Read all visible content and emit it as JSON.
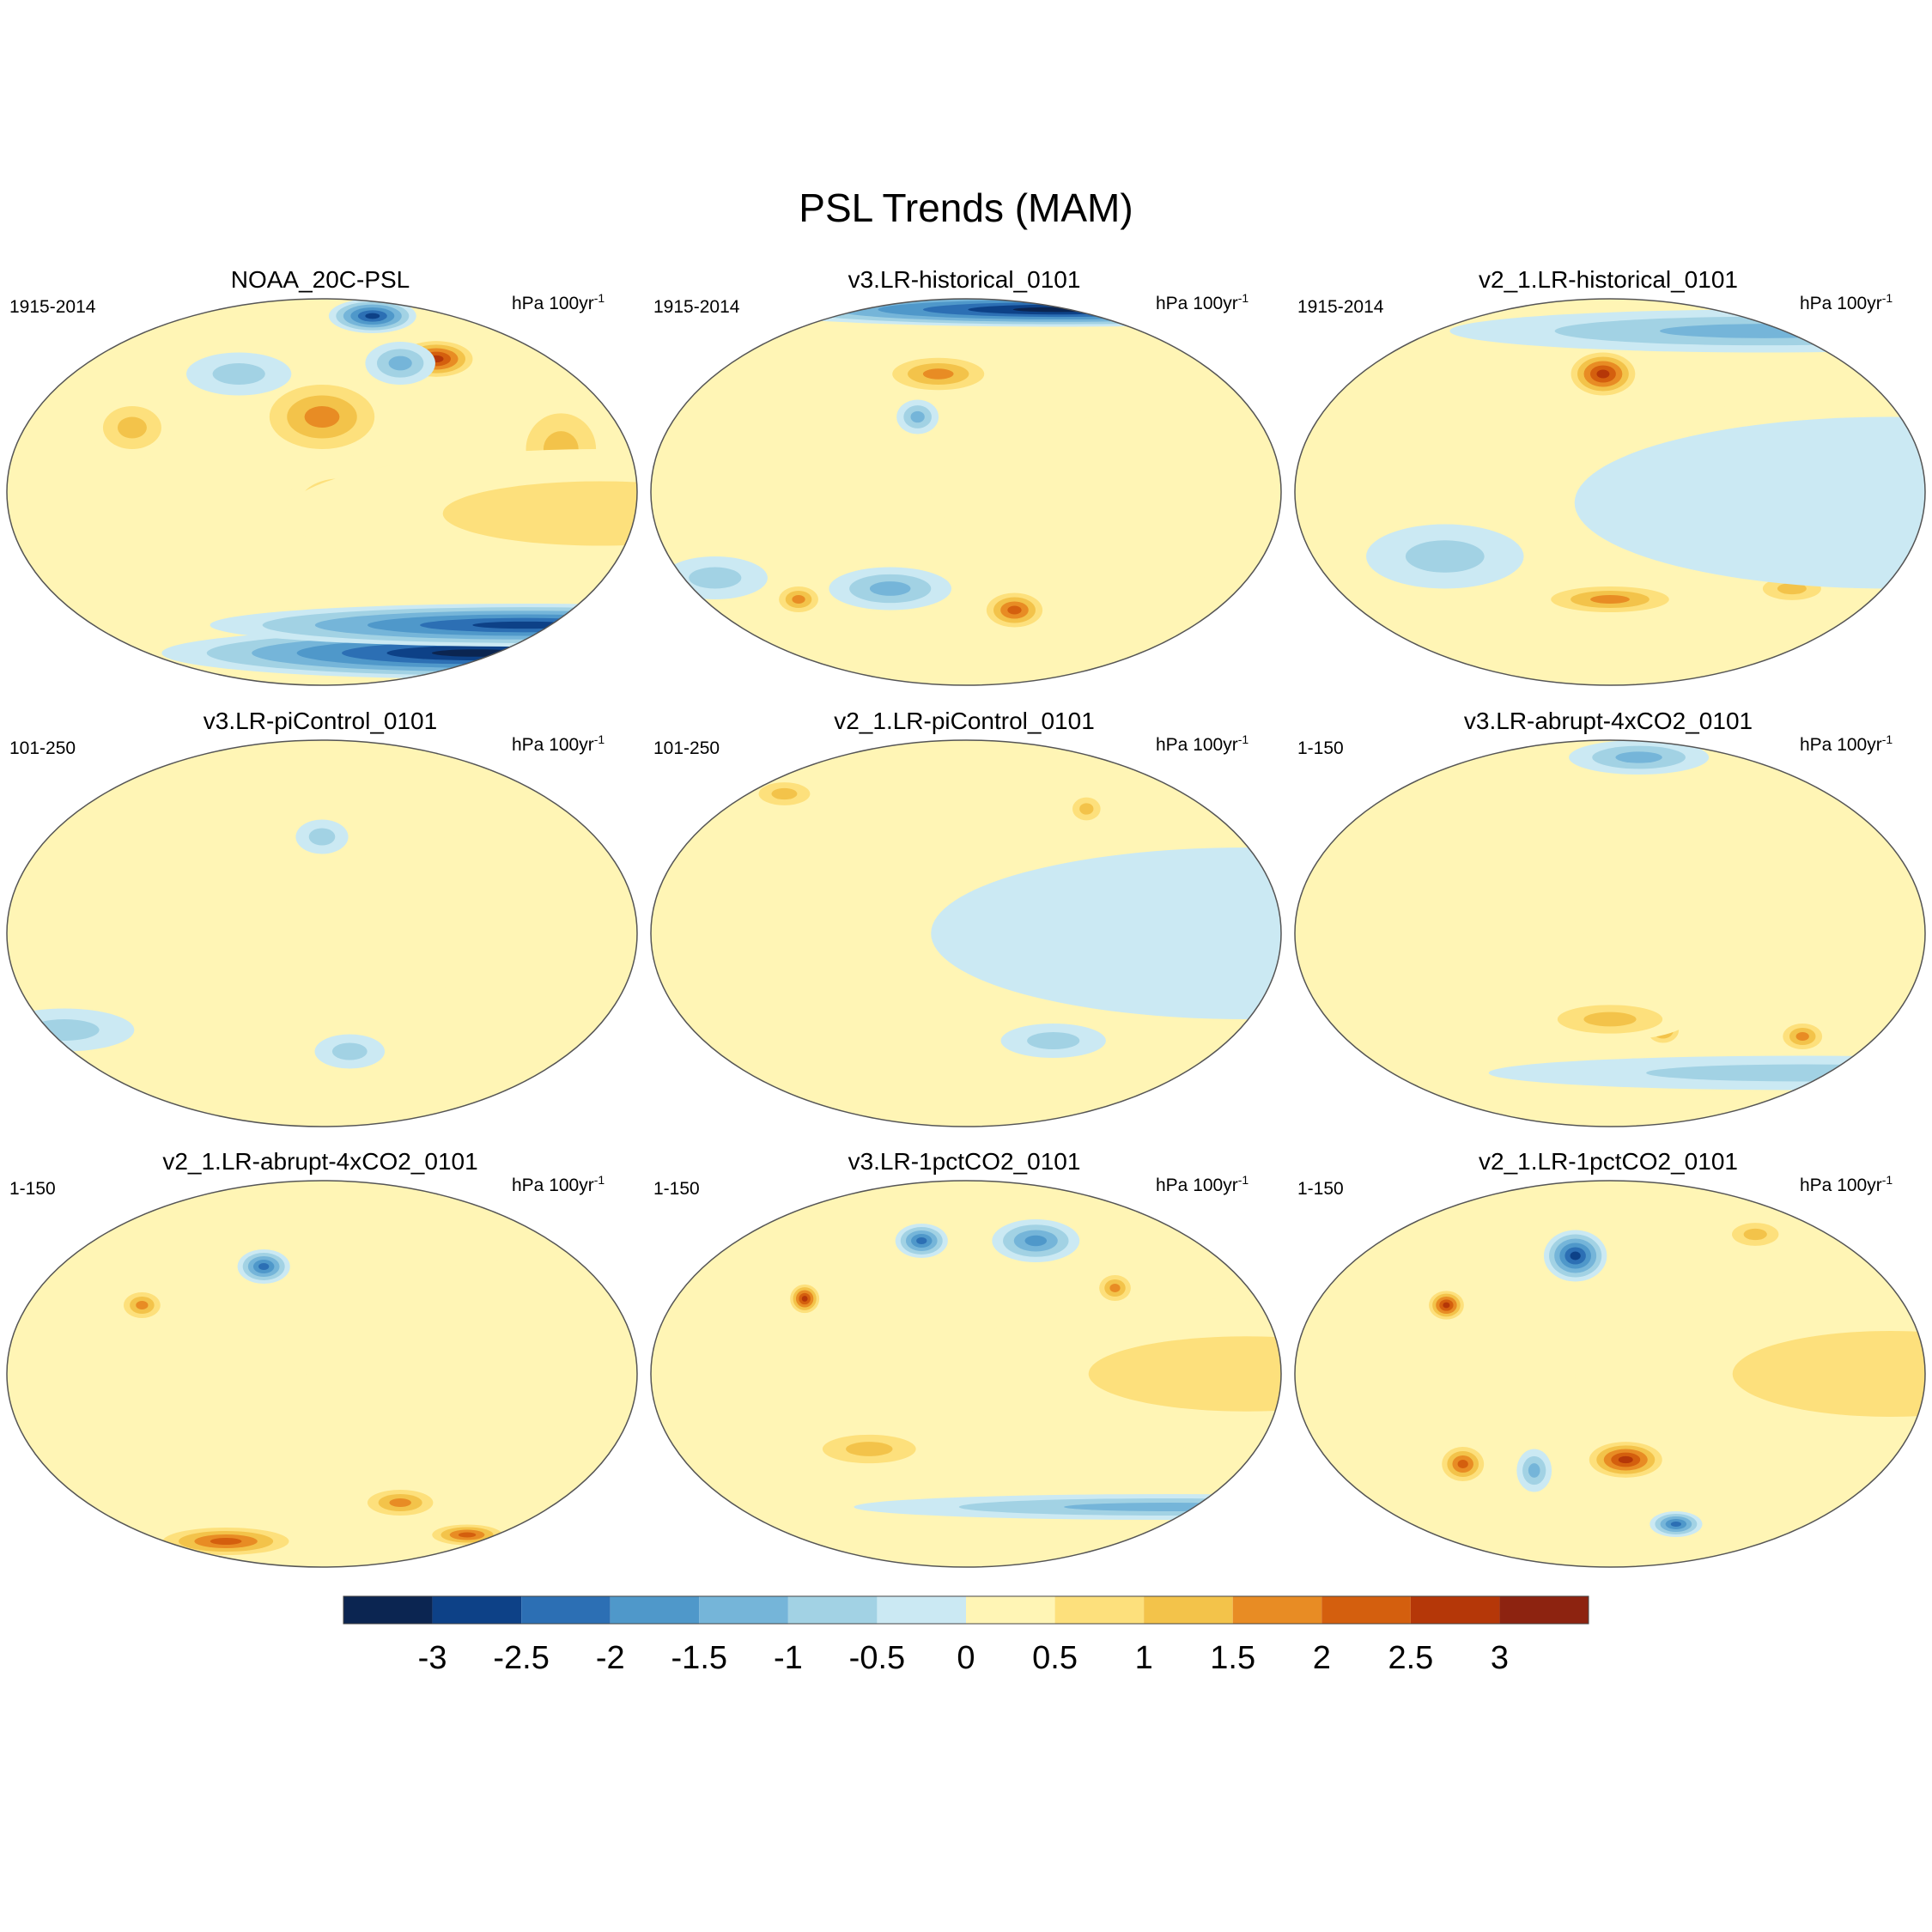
{
  "title": "PSL Trends (MAM)",
  "units_main": "hPa 100yr",
  "units_exp": "-1",
  "panels": [
    {
      "name": "NOAA_20C-PSL",
      "period": "1915-2014",
      "blobs": [
        {
          "lon": 0,
          "lat": -75,
          "v": -3.2,
          "w": 180,
          "h": 12
        },
        {
          "lon": 0,
          "lat": -62,
          "v": -3,
          "w": 180,
          "h": 10
        },
        {
          "lon": 200,
          "lat": 35,
          "v": 1.6,
          "w": 40,
          "h": 20
        },
        {
          "lon": 210,
          "lat": -5,
          "v": 1.8,
          "w": 30,
          "h": 15
        },
        {
          "lon": 290,
          "lat": 62,
          "v": 2.6,
          "w": 25,
          "h": 10
        },
        {
          "lon": 340,
          "lat": 20,
          "v": 1.5,
          "w": 30,
          "h": 25
        },
        {
          "lon": 85,
          "lat": 30,
          "v": 1.4,
          "w": 25,
          "h": 15
        },
        {
          "lon": 140,
          "lat": 55,
          "v": -0.8,
          "w": 30,
          "h": 10
        },
        {
          "lon": 270,
          "lat": 82,
          "v": -3,
          "w": 25,
          "h": 8
        },
        {
          "lon": 260,
          "lat": 60,
          "v": -1.2,
          "w": 20,
          "h": 10
        },
        {
          "lon": 0,
          "lat": -10,
          "v": 0.9,
          "w": 180,
          "h": 30
        }
      ]
    },
    {
      "name": "v3.LR-historical_0101",
      "period": "1915-2014",
      "blobs": [
        {
          "lon": 0,
          "lat": 85,
          "v": -3.2,
          "w": 180,
          "h": 8
        },
        {
          "lon": 180,
          "lat": 55,
          "v": 1.6,
          "w": 35,
          "h": 10
        },
        {
          "lon": 170,
          "lat": 35,
          "v": -1.2,
          "w": 12,
          "h": 8
        },
        {
          "lon": 235,
          "lat": -55,
          "v": 2.3,
          "w": 20,
          "h": 10
        },
        {
          "lon": 85,
          "lat": -50,
          "v": 1.8,
          "w": 15,
          "h": 8
        },
        {
          "lon": 150,
          "lat": -45,
          "v": -1.4,
          "w": 35,
          "h": 10
        },
        {
          "lon": 40,
          "lat": -40,
          "v": -1,
          "w": 30,
          "h": 10
        },
        {
          "lon": 340,
          "lat": 10,
          "v": 0.9,
          "w": 25,
          "h": 25
        },
        {
          "lon": 0,
          "lat": 0,
          "v": 0.4,
          "w": 180,
          "h": 40
        }
      ]
    },
    {
      "name": "v2_1.LR-historical_0101",
      "period": "1915-2014",
      "blobs": [
        {
          "lon": 195,
          "lat": 55,
          "v": 3,
          "w": 22,
          "h": 12
        },
        {
          "lon": 200,
          "lat": -50,
          "v": 1.8,
          "w": 45,
          "h": 8
        },
        {
          "lon": 320,
          "lat": -45,
          "v": 1.4,
          "w": 25,
          "h": 8
        },
        {
          "lon": 0,
          "lat": 75,
          "v": -1.2,
          "w": 180,
          "h": 10
        },
        {
          "lon": 100,
          "lat": -30,
          "v": -1,
          "w": 45,
          "h": 15
        },
        {
          "lon": 260,
          "lat": 20,
          "v": 0.4,
          "w": 40,
          "h": 20
        },
        {
          "lon": 0,
          "lat": -5,
          "v": -0.3,
          "w": 180,
          "h": 40
        }
      ]
    },
    {
      "name": "v3.LR-piControl_0101",
      "period": "101-250",
      "blobs": [
        {
          "lon": 220,
          "lat": -55,
          "v": -0.8,
          "w": 20,
          "h": 8
        },
        {
          "lon": 200,
          "lat": 45,
          "v": -0.6,
          "w": 15,
          "h": 8
        },
        {
          "lon": 30,
          "lat": -45,
          "v": -0.6,
          "w": 40,
          "h": 10
        },
        {
          "lon": 0,
          "lat": 10,
          "v": 0.3,
          "w": 180,
          "h": 40
        }
      ]
    },
    {
      "name": "v2_1.LR-piControl_0101",
      "period": "101-250",
      "blobs": [
        {
          "lon": 50,
          "lat": 65,
          "v": 1.4,
          "w": 22,
          "h": 8
        },
        {
          "lon": 290,
          "lat": 58,
          "v": 1.5,
          "w": 12,
          "h": 8
        },
        {
          "lon": 260,
          "lat": -50,
          "v": -0.6,
          "w": 30,
          "h": 8
        },
        {
          "lon": 0,
          "lat": 0,
          "v": -0.2,
          "w": 180,
          "h": 40
        }
      ]
    },
    {
      "name": "v3.LR-abrupt-4xCO2_0101",
      "period": "1-150",
      "blobs": [
        {
          "lon": 240,
          "lat": 82,
          "v": -1.5,
          "w": 40,
          "h": 8
        },
        {
          "lon": 235,
          "lat": -45,
          "v": 2,
          "w": 12,
          "h": 8
        },
        {
          "lon": 330,
          "lat": -48,
          "v": 1.6,
          "w": 15,
          "h": 8
        },
        {
          "lon": 200,
          "lat": -40,
          "v": 1.1,
          "w": 45,
          "h": 10
        },
        {
          "lon": 0,
          "lat": -65,
          "v": -0.6,
          "w": 180,
          "h": 8
        },
        {
          "lon": 0,
          "lat": 10,
          "v": 0.4,
          "w": 180,
          "h": 40
        }
      ]
    },
    {
      "name": "v2_1.LR-abrupt-4xCO2_0101",
      "period": "1-150",
      "blobs": [
        {
          "lon": 160,
          "lat": 50,
          "v": -2.5,
          "w": 15,
          "h": 8
        },
        {
          "lon": 90,
          "lat": 32,
          "v": 1.6,
          "w": 14,
          "h": 8
        },
        {
          "lon": 90,
          "lat": -78,
          "v": 2.4,
          "w": 45,
          "h": 8
        },
        {
          "lon": 260,
          "lat": -60,
          "v": 1.8,
          "w": 25,
          "h": 8
        },
        {
          "lon": 350,
          "lat": -75,
          "v": 2.2,
          "w": 25,
          "h": 6
        },
        {
          "lon": 0,
          "lat": 15,
          "v": 0.5,
          "w": 180,
          "h": 40
        }
      ]
    },
    {
      "name": "v3.LR-1pctCO2_0101",
      "period": "1-150",
      "blobs": [
        {
          "lon": 165,
          "lat": 62,
          "v": -2.5,
          "w": 15,
          "h": 8
        },
        {
          "lon": 255,
          "lat": 62,
          "v": -1.8,
          "w": 25,
          "h": 10
        },
        {
          "lon": 100,
          "lat": 35,
          "v": 3,
          "w": 10,
          "h": 8
        },
        {
          "lon": 295,
          "lat": 40,
          "v": 1.6,
          "w": 12,
          "h": 8
        },
        {
          "lon": 0,
          "lat": -62,
          "v": -1.2,
          "w": 180,
          "h": 6
        },
        {
          "lon": 0,
          "lat": 0,
          "v": 1,
          "w": 180,
          "h": 35
        },
        {
          "lon": 140,
          "lat": -35,
          "v": 1.4,
          "w": 40,
          "h": 10
        }
      ]
    },
    {
      "name": "v2_1.LR-1pctCO2_0101",
      "period": "1-150",
      "blobs": [
        {
          "lon": 175,
          "lat": 55,
          "v": -3,
          "w": 18,
          "h": 12
        },
        {
          "lon": 100,
          "lat": 32,
          "v": 2.8,
          "w": 12,
          "h": 8
        },
        {
          "lon": 210,
          "lat": -40,
          "v": 2.8,
          "w": 25,
          "h": 10
        },
        {
          "lon": 105,
          "lat": -42,
          "v": 2.5,
          "w": 15,
          "h": 10
        },
        {
          "lon": 150,
          "lat": -45,
          "v": -1.5,
          "w": 10,
          "h": 10
        },
        {
          "lon": 260,
          "lat": -70,
          "v": -2.5,
          "w": 15,
          "h": 6
        },
        {
          "lon": 0,
          "lat": 0,
          "v": 1,
          "w": 180,
          "h": 40
        },
        {
          "lon": 320,
          "lat": 65,
          "v": 1.5,
          "w": 20,
          "h": 8
        }
      ]
    }
  ],
  "colorbar": {
    "colors": [
      "#0b2551",
      "#0d4187",
      "#2c6fb4",
      "#4f98ca",
      "#75b5d9",
      "#a2d2e4",
      "#cbe9f3",
      "#fff5b5",
      "#fde07c",
      "#f3c34a",
      "#e88c24",
      "#d45f0e",
      "#b53708",
      "#8d2310"
    ],
    "ticks": [
      "-3",
      "-2.5",
      "-2",
      "-1.5",
      "-1",
      "-0.5",
      "0",
      "0.5",
      "1",
      "1.5",
      "2",
      "2.5",
      "3"
    ]
  }
}
